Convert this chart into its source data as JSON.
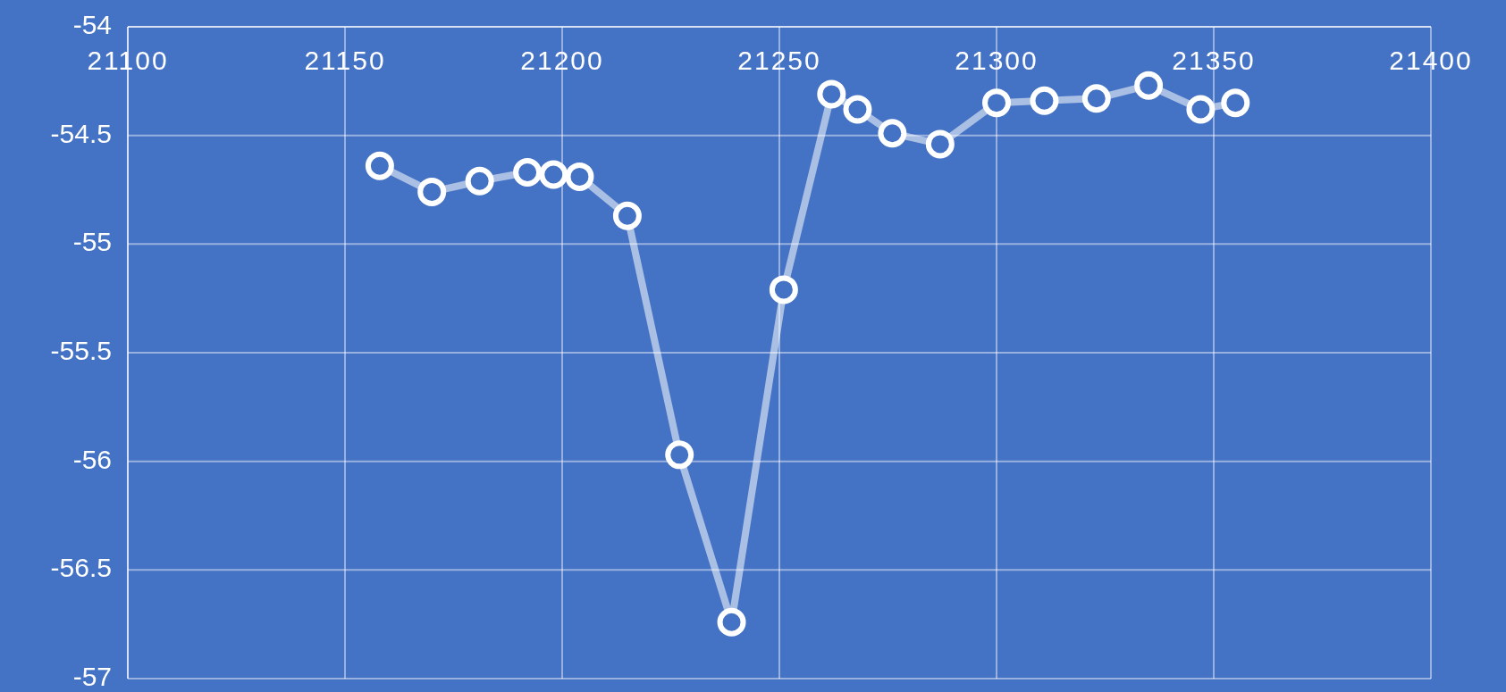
{
  "chart_data": {
    "type": "line",
    "x": [
      21158,
      21170,
      21181,
      21192,
      21198,
      21204,
      21215,
      21227,
      21239,
      21251,
      21262,
      21268,
      21276,
      21287,
      21300,
      21311,
      21323,
      21335,
      21347,
      21355
    ],
    "series": [
      {
        "color": "#ffffff",
        "values": [
          -54.64,
          -54.76,
          -54.71,
          -54.67,
          -54.68,
          -54.69,
          -54.87,
          -55.97,
          -56.74,
          -55.21,
          -54.31,
          -54.38,
          -54.49,
          -54.54,
          -54.35,
          -54.34,
          -54.33,
          -54.27,
          -54.38,
          -54.35
        ]
      }
    ],
    "xlim": [
      21100,
      21400
    ],
    "xticks": [
      21100,
      21150,
      21200,
      21250,
      21300,
      21350,
      21400
    ],
    "ylim": [
      -57,
      -54
    ],
    "yticks": [
      -57,
      -56.5,
      -56,
      -55.5,
      -55,
      -54.5,
      -54
    ],
    "grid": true,
    "marker": "circle",
    "line_style": "solid"
  }
}
